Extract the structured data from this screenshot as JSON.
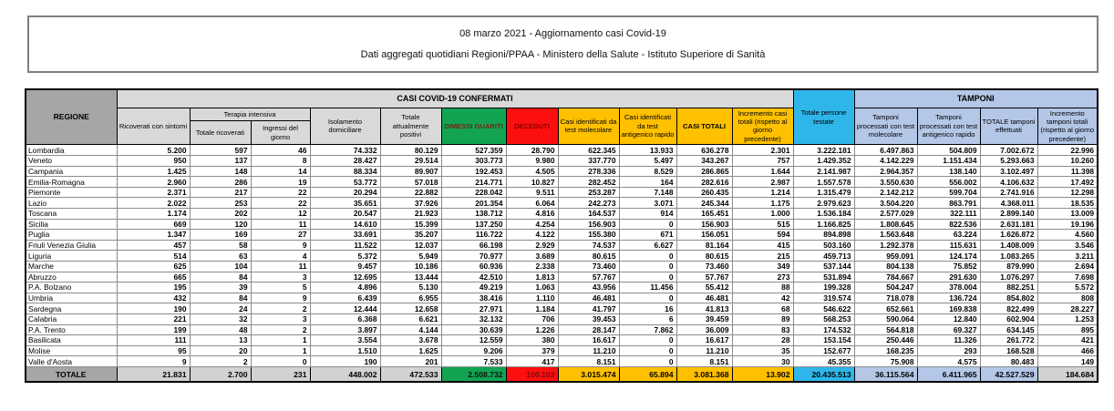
{
  "title": {
    "line1": "08 marzo 2021 - Aggiornamento casi Covid-19",
    "line2": "Dati aggregati quotidiani Regioni/PPAA - Ministero della Salute - Istituto Superiore di Sanità"
  },
  "colors": {
    "header_green": "#12a452",
    "header_red": "#fb0f0f",
    "header_yellow": "#ffc000",
    "header_cyan": "#2eb6ea",
    "header_lightblue": "#b4c7e7",
    "header_gray_dark": "#a6a6a6",
    "header_gray_light": "#d9d9d9",
    "dark_red_text": "#8b0000"
  },
  "table": {
    "group_headers": {
      "confirmed": "CASI COVID-19 CONFERMATI",
      "tamponi": "TAMPONI",
      "terapia_intensiva": "Terapia intensiva"
    },
    "columns": {
      "regione": "REGIONE",
      "ricoverati": "Ricoverati con sintomi",
      "terapia_totale": "Totale ricoverati",
      "terapia_ingressi": "Ingressi del giorno",
      "isolamento": "Isolamento domiciliare",
      "attualmente_positivi": "Totale attualmente positivi",
      "dimessi": "DIMESSI GUARITI",
      "deceduti": "DECEDUTI",
      "casi_molecolare": "Casi identificati da test molecolare",
      "casi_antigenico": "Casi identificati da test antigenico rapido",
      "casi_totali": "CASI TOTALI",
      "incremento_casi": "Incremento casi totali (rispetto al giorno precedente)",
      "persone_testate": "Totale persone testate",
      "tamponi_molecolare": "Tamponi processati con test molecolare",
      "tamponi_antigenico": "Tamponi processati con test antigenico rapido",
      "totale_tamponi": "TOTALE tamponi effettuati",
      "incremento_tamponi": "Incremento tamponi totali (rispetto al giorno precedente)"
    },
    "rows": [
      {
        "region": "Lombardia",
        "values": [
          "5.200",
          "597",
          "46",
          "74.332",
          "80.129",
          "527.359",
          "28.790",
          "622.345",
          "13.933",
          "636.278",
          "2.301",
          "3.222.181",
          "6.497.863",
          "504.809",
          "7.002.672",
          "22.996"
        ]
      },
      {
        "region": "Veneto",
        "values": [
          "950",
          "137",
          "8",
          "28.427",
          "29.514",
          "303.773",
          "9.980",
          "337.770",
          "5.497",
          "343.267",
          "757",
          "1.429.352",
          "4.142.229",
          "1.151.434",
          "5.293.663",
          "10.260"
        ]
      },
      {
        "region": "Campania",
        "values": [
          "1.425",
          "148",
          "14",
          "88.334",
          "89.907",
          "192.453",
          "4.505",
          "278.336",
          "8.529",
          "286.865",
          "1.644",
          "2.141.987",
          "2.964.357",
          "138.140",
          "3.102.497",
          "11.398"
        ]
      },
      {
        "region": "Emilia-Romagna",
        "values": [
          "2.960",
          "286",
          "19",
          "53.772",
          "57.018",
          "214.771",
          "10.827",
          "282.452",
          "164",
          "282.616",
          "2.987",
          "1.557.578",
          "3.550.630",
          "556.002",
          "4.106.632",
          "17.492"
        ]
      },
      {
        "region": "Piemonte",
        "values": [
          "2.371",
          "217",
          "22",
          "20.294",
          "22.882",
          "228.042",
          "9.511",
          "253.287",
          "7.148",
          "260.435",
          "1.214",
          "1.315.479",
          "2.142.212",
          "599.704",
          "2.741.916",
          "12.298"
        ]
      },
      {
        "region": "Lazio",
        "values": [
          "2.022",
          "253",
          "22",
          "35.651",
          "37.926",
          "201.354",
          "6.064",
          "242.273",
          "3.071",
          "245.344",
          "1.175",
          "2.979.623",
          "3.504.220",
          "863.791",
          "4.368.011",
          "18.535"
        ]
      },
      {
        "region": "Toscana",
        "values": [
          "1.174",
          "202",
          "12",
          "20.547",
          "21.923",
          "138.712",
          "4.816",
          "164.537",
          "914",
          "165.451",
          "1.000",
          "1.536.184",
          "2.577.029",
          "322.111",
          "2.899.140",
          "13.009"
        ]
      },
      {
        "region": "Sicilia",
        "values": [
          "669",
          "120",
          "11",
          "14.610",
          "15.399",
          "137.250",
          "4.254",
          "156.903",
          "0",
          "156.903",
          "515",
          "1.166.825",
          "1.808.645",
          "822.536",
          "2.631.181",
          "19.196"
        ]
      },
      {
        "region": "Puglia",
        "values": [
          "1.347",
          "169",
          "27",
          "33.691",
          "35.207",
          "116.722",
          "4.122",
          "155.380",
          "671",
          "156.051",
          "594",
          "894.898",
          "1.563.648",
          "63.224",
          "1.626.872",
          "4.560"
        ]
      },
      {
        "region": "Friuli Venezia Giulia",
        "values": [
          "457",
          "58",
          "9",
          "11.522",
          "12.037",
          "66.198",
          "2.929",
          "74.537",
          "6.627",
          "81.164",
          "415",
          "503.160",
          "1.292.378",
          "115.631",
          "1.408.009",
          "3.546"
        ]
      },
      {
        "region": "Liguria",
        "values": [
          "514",
          "63",
          "4",
          "5.372",
          "5.949",
          "70.977",
          "3.689",
          "80.615",
          "0",
          "80.615",
          "215",
          "459.713",
          "959.091",
          "124.174",
          "1.083.265",
          "3.211"
        ]
      },
      {
        "region": "Marche",
        "values": [
          "625",
          "104",
          "11",
          "9.457",
          "10.186",
          "60.936",
          "2.338",
          "73.460",
          "0",
          "73.460",
          "349",
          "537.144",
          "804.138",
          "75.852",
          "879.990",
          "2.694"
        ]
      },
      {
        "region": "Abruzzo",
        "values": [
          "665",
          "84",
          "3",
          "12.695",
          "13.444",
          "42.510",
          "1.813",
          "57.767",
          "0",
          "57.767",
          "273",
          "531.894",
          "784.667",
          "291.630",
          "1.076.297",
          "7.698"
        ]
      },
      {
        "region": "P.A. Bolzano",
        "values": [
          "195",
          "39",
          "5",
          "4.896",
          "5.130",
          "49.219",
          "1.063",
          "43.956",
          "11.456",
          "55.412",
          "88",
          "199.328",
          "504.247",
          "378.004",
          "882.251",
          "5.572"
        ]
      },
      {
        "region": "Umbria",
        "values": [
          "432",
          "84",
          "9",
          "6.439",
          "6.955",
          "38.416",
          "1.110",
          "46.481",
          "0",
          "46.481",
          "42",
          "319.574",
          "718.078",
          "136.724",
          "854.802",
          "808"
        ]
      },
      {
        "region": "Sardegna",
        "values": [
          "190",
          "24",
          "2",
          "12.444",
          "12.658",
          "27.971",
          "1.184",
          "41.797",
          "16",
          "41.813",
          "68",
          "546.622",
          "652.661",
          "169.838",
          "822.499",
          "28.227"
        ]
      },
      {
        "region": "Calabria",
        "values": [
          "221",
          "32",
          "3",
          "6.368",
          "6.621",
          "32.132",
          "706",
          "39.453",
          "6",
          "39.459",
          "89",
          "568.253",
          "590.064",
          "12.840",
          "602.904",
          "1.253"
        ]
      },
      {
        "region": "P.A. Trento",
        "values": [
          "199",
          "48",
          "2",
          "3.897",
          "4.144",
          "30.639",
          "1.226",
          "28.147",
          "7.862",
          "36.009",
          "83",
          "174.532",
          "564.818",
          "69.327",
          "634.145",
          "895"
        ]
      },
      {
        "region": "Basilicata",
        "values": [
          "111",
          "13",
          "1",
          "3.554",
          "3.678",
          "12.559",
          "380",
          "16.617",
          "0",
          "16.617",
          "28",
          "153.154",
          "250.446",
          "11.326",
          "261.772",
          "421"
        ]
      },
      {
        "region": "Molise",
        "values": [
          "95",
          "20",
          "1",
          "1.510",
          "1.625",
          "9.206",
          "379",
          "11.210",
          "0",
          "11.210",
          "35",
          "152.677",
          "168.235",
          "293",
          "168.528",
          "466"
        ]
      },
      {
        "region": "Valle d'Aosta",
        "values": [
          "9",
          "2",
          "0",
          "190",
          "201",
          "7.533",
          "417",
          "8.151",
          "0",
          "8.151",
          "30",
          "45.355",
          "75.908",
          "4.575",
          "80.483",
          "149"
        ]
      }
    ],
    "totals": {
      "label": "TOTALE",
      "values": [
        "21.831",
        "2.700",
        "231",
        "448.002",
        "472.533",
        "2.508.732",
        "100.103",
        "3.015.474",
        "65.894",
        "3.081.368",
        "13.902",
        "20.435.513",
        "36.115.564",
        "6.411.965",
        "42.527.529",
        "184.684"
      ]
    }
  }
}
